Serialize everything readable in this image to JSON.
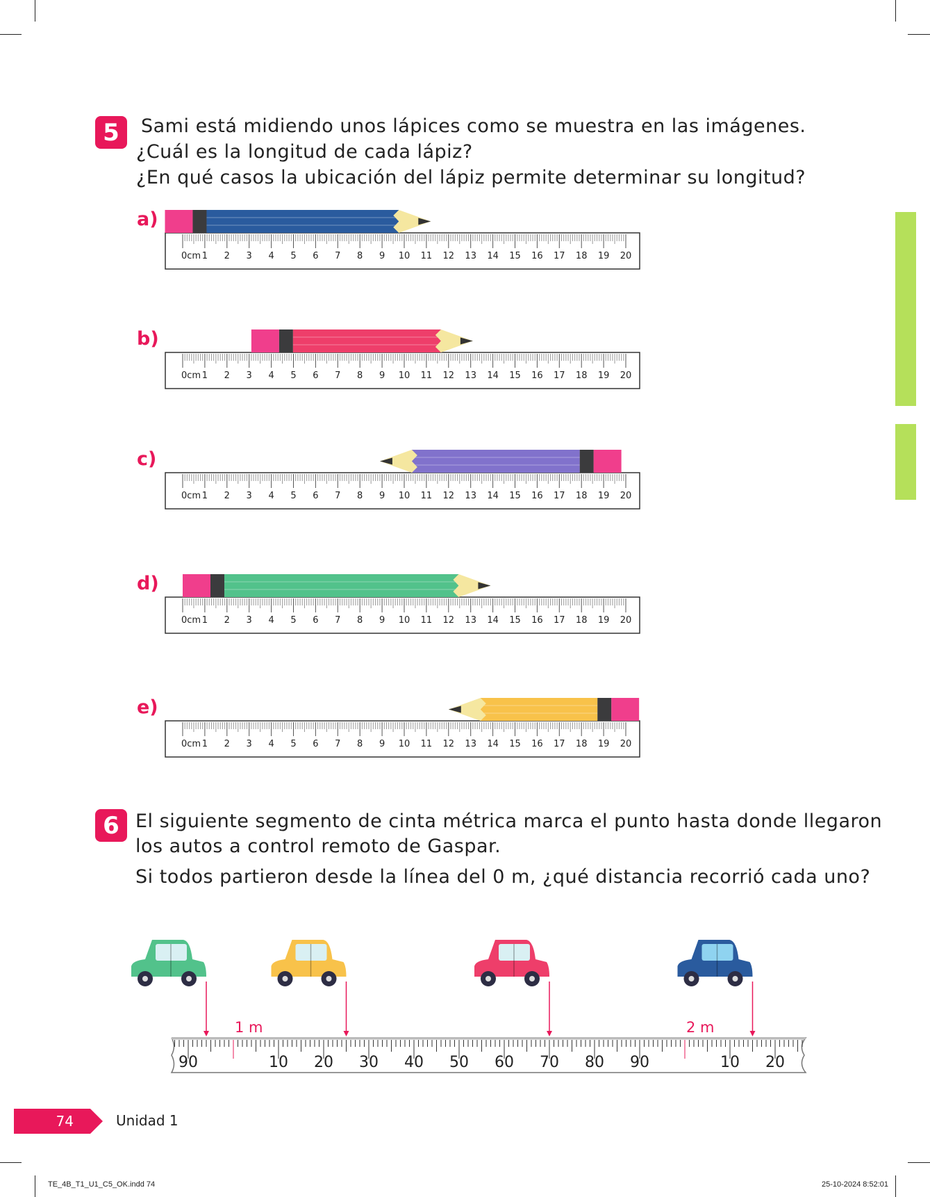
{
  "q5": {
    "number": "5",
    "lines": [
      "Sami está midiendo unos lápices como se muestra en las imágenes.",
      "¿Cuál es la longitud de cada lápiz?",
      "¿En qué casos la ubicación del lápiz permite determinar su longitud?"
    ],
    "ruler": {
      "unit_label": "0cm",
      "max_cm": 20
    },
    "items": [
      {
        "label": "a)",
        "color": "#2a5b9e",
        "back_cm": -0.8,
        "tip_cm": 11.2,
        "direction": "right"
      },
      {
        "label": "b)",
        "color": "#ee3e6a",
        "back_cm": 3.1,
        "tip_cm": 13.1,
        "direction": "right"
      },
      {
        "label": "c)",
        "color": "#8172cc",
        "back_cm": 19.8,
        "tip_cm": 8.9,
        "direction": "left"
      },
      {
        "label": "d)",
        "color": "#52c28b",
        "back_cm": 0,
        "tip_cm": 13.9,
        "direction": "right"
      },
      {
        "label": "e)",
        "color": "#f8c24a",
        "back_cm": 20.6,
        "tip_cm": 12,
        "direction": "left"
      }
    ]
  },
  "q6": {
    "number": "6",
    "lines": [
      "El siguiente segmento de cinta métrica marca el punto hasta donde llegaron",
      "los autos a control remoto de Gaspar.",
      "Si todos partieron desde la línea del 0 m, ¿qué distancia recorrió cada uno?"
    ],
    "tape": {
      "labels": [
        "90",
        "10",
        "20",
        "30",
        "40",
        "50",
        "60",
        "70",
        "80",
        "90",
        "10",
        "20"
      ],
      "meter_labels": [
        "1 m",
        "2 m"
      ],
      "start_cm": 90,
      "end_cm": 230
    },
    "cars": [
      {
        "color": "#52c28b",
        "stop_cm": 94
      },
      {
        "color": "#f8c24a",
        "stop_cm": 125
      },
      {
        "color": "#ee3e6a",
        "stop_cm": 170
      },
      {
        "color": "#2a5b9e",
        "stop_cm": 215
      }
    ]
  },
  "footer": {
    "page": "74",
    "unit": "Unidad 1"
  },
  "slug": {
    "file": "TE_4B_T1_U1_C5_OK.indd   74",
    "date": "25-10-2024   8:52:01"
  },
  "colors": {
    "accent": "#e8185a",
    "side_tab": "#b5e05a"
  }
}
